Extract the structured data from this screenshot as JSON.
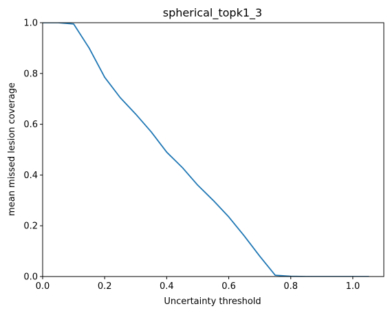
{
  "chart_data": {
    "type": "line",
    "title": "spherical_topk1_3",
    "xlabel": "Uncertainty threshold",
    "ylabel": "mean missed lesion coverage",
    "xlim": [
      0.0,
      1.1
    ],
    "ylim": [
      0.0,
      1.0
    ],
    "xticks": [
      0.0,
      0.2,
      0.4,
      0.6,
      0.8,
      1.0
    ],
    "xtick_labels": [
      "0.0",
      "0.2",
      "0.4",
      "0.6",
      "0.8",
      "1.0"
    ],
    "yticks": [
      0.0,
      0.2,
      0.4,
      0.6,
      0.8,
      1.0
    ],
    "ytick_labels": [
      "0.0",
      "0.2",
      "0.4",
      "0.6",
      "0.8",
      "1.0"
    ],
    "grid": false,
    "series": [
      {
        "color": "#1f77b4",
        "x": [
          0.0,
          0.05,
          0.1,
          0.15,
          0.2,
          0.25,
          0.3,
          0.35,
          0.4,
          0.45,
          0.5,
          0.55,
          0.6,
          0.65,
          0.7,
          0.75,
          0.8,
          0.85,
          0.9,
          0.95,
          1.0,
          1.05
        ],
        "y": [
          1.0,
          1.0,
          0.995,
          0.9,
          0.785,
          0.705,
          0.64,
          0.57,
          0.49,
          0.43,
          0.36,
          0.3,
          0.235,
          0.16,
          0.08,
          0.005,
          0.001,
          0.0,
          0.0,
          0.0,
          0.0,
          0.0
        ]
      }
    ]
  }
}
